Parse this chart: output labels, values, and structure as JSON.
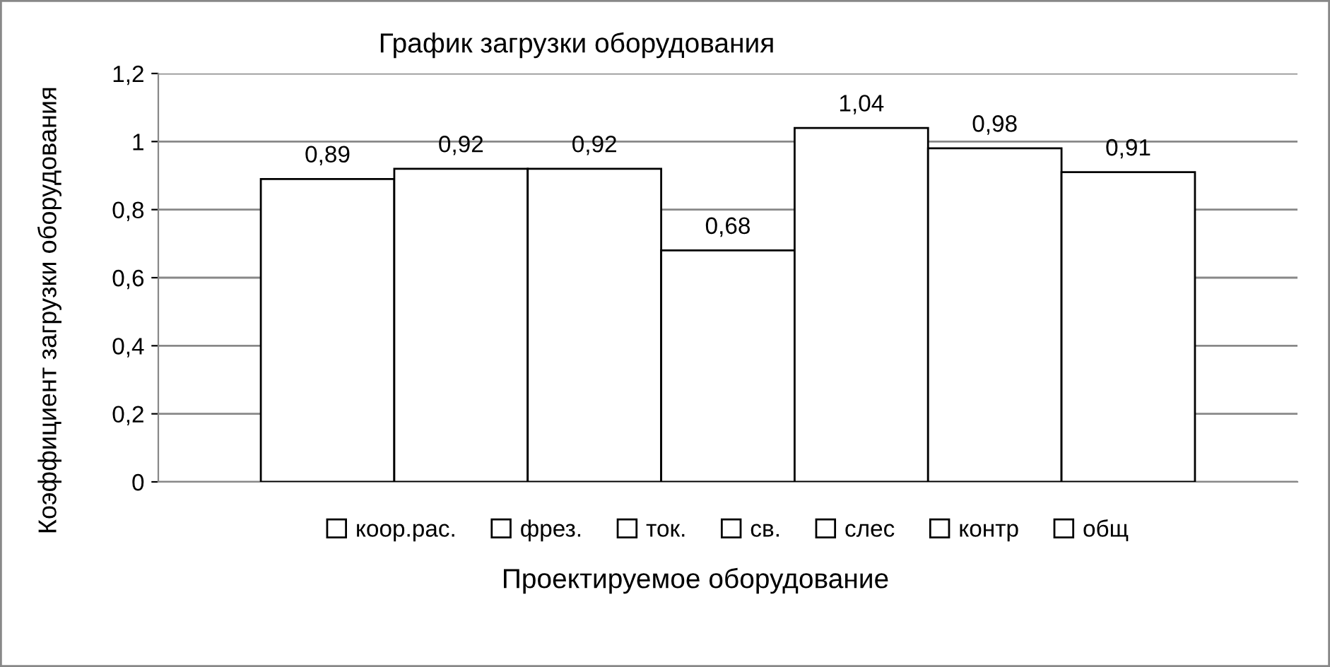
{
  "chart_data": {
    "type": "bar",
    "title": "График загрузки оборудования",
    "xlabel": "Проектируемое оборудование",
    "ylabel": "Коэффициент загрузки оборудования",
    "categories": [
      null
    ],
    "series": [
      {
        "name": "коор.рас.",
        "color": "#ffffff",
        "values": [
          0.89
        ],
        "value_labels": [
          "0,89"
        ]
      },
      {
        "name": "фрез.",
        "color": "#ffffff",
        "values": [
          0.92
        ],
        "value_labels": [
          "0,92"
        ]
      },
      {
        "name": "ток.",
        "color": "#ffffff",
        "values": [
          0.92
        ],
        "value_labels": [
          "0,92"
        ]
      },
      {
        "name": "св.",
        "color": "#ffffff",
        "values": [
          0.68
        ],
        "value_labels": [
          "0,68"
        ]
      },
      {
        "name": "слес",
        "color": "#ffffff",
        "values": [
          1.04
        ],
        "value_labels": [
          "1,04"
        ]
      },
      {
        "name": "контр",
        "color": "#ffffff",
        "values": [
          0.98
        ],
        "value_labels": [
          "0,98"
        ]
      },
      {
        "name": "общ",
        "color": "#ffffff",
        "values": [
          0.91
        ],
        "value_labels": [
          "0,91"
        ]
      }
    ],
    "ylim": [
      0,
      1.2
    ],
    "yticks": [
      0,
      {
        "value": 0.2,
        "label": "0,2"
      },
      {
        "value": 0.4,
        "label": "0,4"
      },
      {
        "value": 0.6,
        "label": "0,6"
      },
      {
        "value": 0.8,
        "label": "0,8"
      },
      1,
      {
        "value": 1.2,
        "label": "1,2"
      }
    ],
    "grid": "y",
    "legend": "bottom"
  }
}
